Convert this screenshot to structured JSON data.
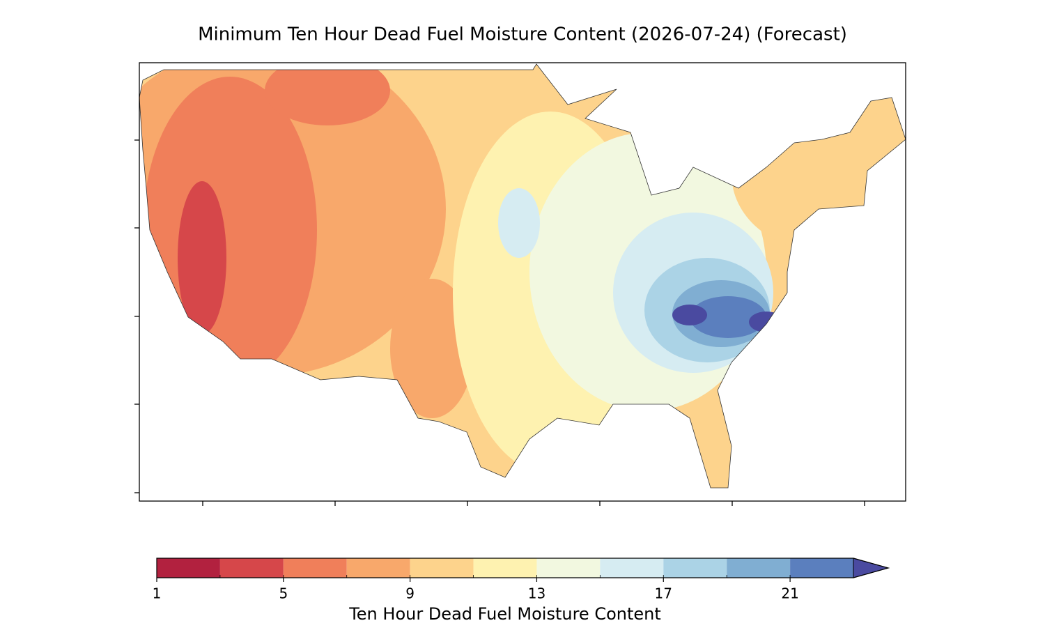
{
  "title": "Minimum Ten Hour Dead Fuel Moisture Content (2026-07-24) (Forecast)",
  "colorbar": {
    "label": "Ten Hour Dead Fuel Moisture Content",
    "boundaries": [
      1,
      3,
      5,
      7,
      9,
      11,
      13,
      15,
      17,
      19,
      21,
      23
    ],
    "colors": [
      "#b2213f",
      "#d6474a",
      "#f07f5a",
      "#f8a86b",
      "#fdd38c",
      "#fef2b0",
      "#f2f8e0",
      "#d6ecf2",
      "#abd3e6",
      "#80aed2",
      "#5b7fbe"
    ],
    "extend_color": "#4a4aa0",
    "ticks": [
      1,
      5,
      9,
      13,
      17,
      21
    ]
  }
}
